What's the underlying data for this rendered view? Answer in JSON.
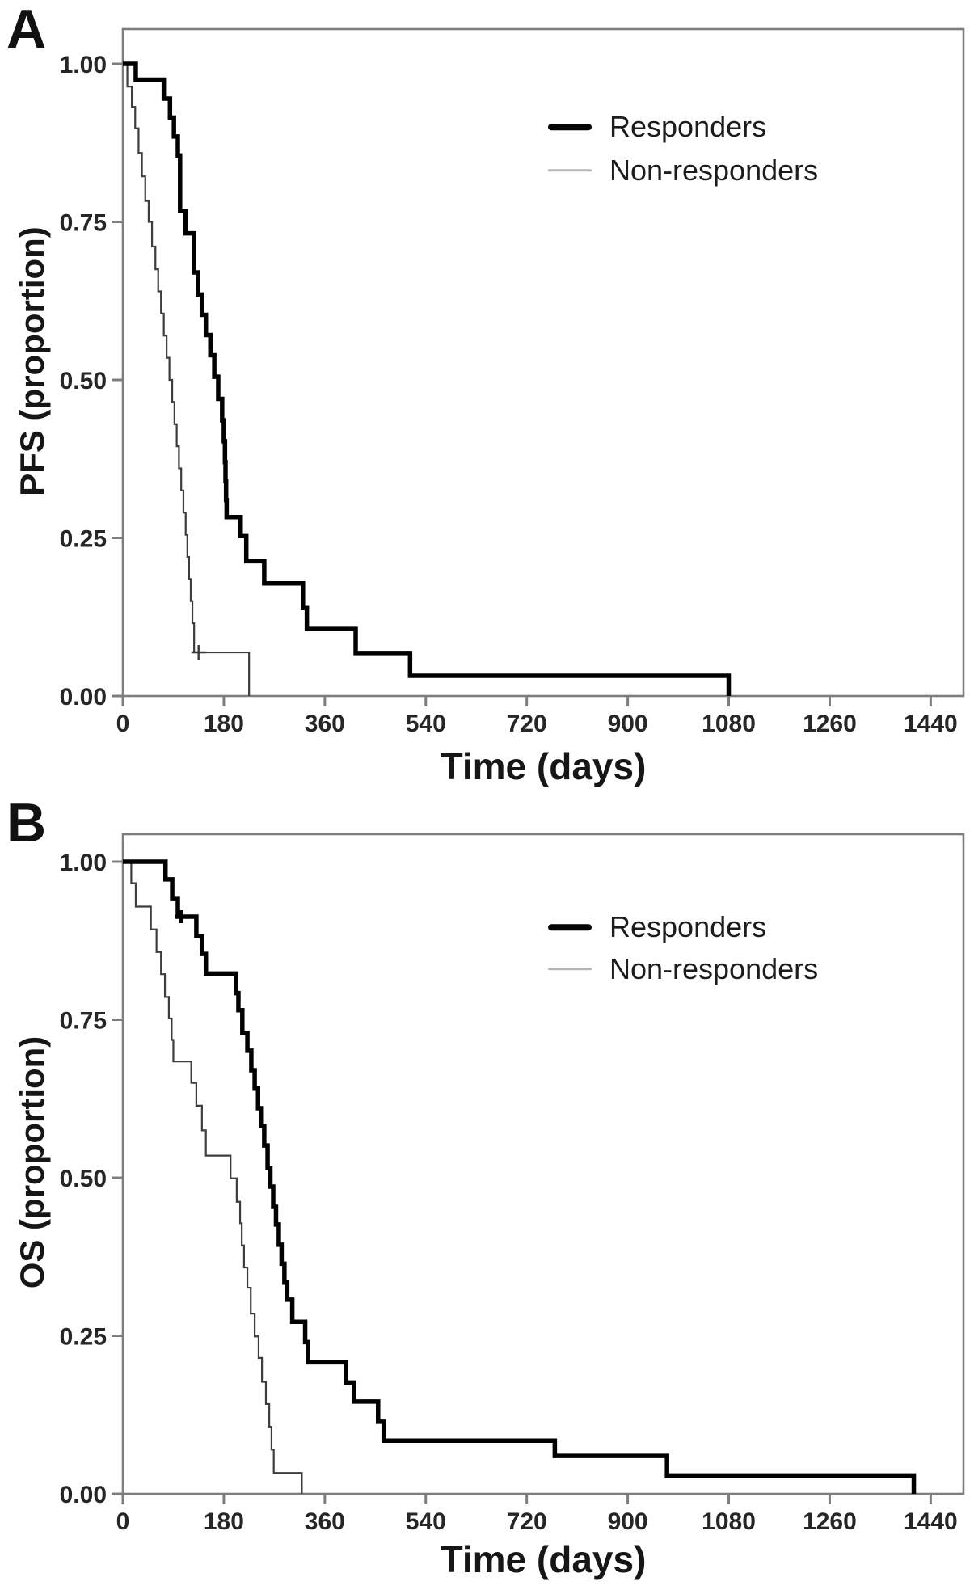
{
  "figure": {
    "kind": "kaplan-meier-survival-figure",
    "panel_letters": [
      "A",
      "B"
    ],
    "colors": {
      "responders_line": "#000000",
      "non_responders_line": "#3d3d3d",
      "non_responders_legend_swatch": "#b5b5b5",
      "axis_frame": "#7d7d7d",
      "tick_text": "#262626"
    }
  },
  "chart_data": [
    {
      "type": "line",
      "subtype": "kaplan-meier-step",
      "panel_label": "A",
      "title": "",
      "xlabel": "Time (days)",
      "ylabel": "PFS (proportion)",
      "xlim": [
        0,
        1499
      ],
      "ylim": [
        0,
        1.06
      ],
      "grid": false,
      "legend_position": "top-right",
      "x_ticks": [
        0,
        180,
        360,
        540,
        720,
        900,
        1080,
        1260,
        1440
      ],
      "x_tick_labels": [
        "0",
        "180",
        "360",
        "540",
        "720",
        "900",
        "1080",
        "1260",
        "1440"
      ],
      "y_ticks": [
        1.0,
        0.75,
        0.5,
        0.25,
        0.0
      ],
      "y_tick_labels": [
        "1.00",
        "0.75",
        "0.50",
        "0.25",
        "0.00"
      ],
      "series": [
        {
          "name": "Responders",
          "steps": [
            [
              0,
              1.0
            ],
            [
              23,
              0.975
            ],
            [
              73,
              0.945
            ],
            [
              84,
              0.915
            ],
            [
              91,
              0.885
            ],
            [
              98,
              0.855
            ],
            [
              102,
              0.767
            ],
            [
              112,
              0.732
            ],
            [
              127,
              0.67
            ],
            [
              134,
              0.635
            ],
            [
              141,
              0.603
            ],
            [
              148,
              0.571
            ],
            [
              156,
              0.539
            ],
            [
              163,
              0.505
            ],
            [
              170,
              0.47
            ],
            [
              177,
              0.436
            ],
            [
              180,
              0.403
            ],
            [
              182,
              0.37
            ],
            [
              183,
              0.34
            ],
            [
              184,
              0.31
            ],
            [
              185,
              0.283
            ],
            [
              210,
              0.254
            ],
            [
              220,
              0.213
            ],
            [
              252,
              0.178
            ],
            [
              321,
              0.139
            ],
            [
              328,
              0.106
            ],
            [
              415,
              0.068
            ],
            [
              512,
              0.032
            ],
            [
              1080,
              0.0
            ]
          ],
          "censor_marks": []
        },
        {
          "name": "Non-responders",
          "steps": [
            [
              0,
              1.0
            ],
            [
              8,
              0.964
            ],
            [
              16,
              0.932
            ],
            [
              22,
              0.898
            ],
            [
              28,
              0.859
            ],
            [
              34,
              0.822
            ],
            [
              40,
              0.783
            ],
            [
              46,
              0.75
            ],
            [
              52,
              0.711
            ],
            [
              58,
              0.675
            ],
            [
              63,
              0.64
            ],
            [
              68,
              0.605
            ],
            [
              73,
              0.57
            ],
            [
              78,
              0.535
            ],
            [
              83,
              0.5
            ],
            [
              88,
              0.465
            ],
            [
              92,
              0.43
            ],
            [
              96,
              0.395
            ],
            [
              100,
              0.36
            ],
            [
              104,
              0.325
            ],
            [
              108,
              0.29
            ],
            [
              112,
              0.255
            ],
            [
              115,
              0.22
            ],
            [
              118,
              0.185
            ],
            [
              121,
              0.15
            ],
            [
              124,
              0.115
            ],
            [
              127,
              0.069
            ],
            [
              225,
              0.0
            ]
          ],
          "censor_marks": [
            [
              135,
              0.069
            ]
          ]
        }
      ]
    },
    {
      "type": "line",
      "subtype": "kaplan-meier-step",
      "panel_label": "B",
      "title": "",
      "xlabel": "Time (days)",
      "ylabel": "OS (proportion)",
      "xlim": [
        0,
        1499
      ],
      "ylim": [
        0,
        1.05
      ],
      "grid": false,
      "legend_position": "top-right",
      "x_ticks": [
        0,
        180,
        360,
        540,
        720,
        900,
        1080,
        1260,
        1440
      ],
      "x_tick_labels": [
        "0",
        "180",
        "360",
        "540",
        "720",
        "900",
        "1080",
        "1260",
        "1440"
      ],
      "y_ticks": [
        1.0,
        0.75,
        0.5,
        0.25,
        0.0
      ],
      "y_tick_labels": [
        "1.00",
        "0.75",
        "0.50",
        "0.25",
        "0.00"
      ],
      "series": [
        {
          "name": "Responders",
          "steps": [
            [
              0,
              1.0
            ],
            [
              76,
              0.972
            ],
            [
              88,
              0.941
            ],
            [
              98,
              0.913
            ],
            [
              131,
              0.882
            ],
            [
              141,
              0.854
            ],
            [
              148,
              0.823
            ],
            [
              202,
              0.792
            ],
            [
              206,
              0.765
            ],
            [
              213,
              0.729
            ],
            [
              222,
              0.701
            ],
            [
              229,
              0.67
            ],
            [
              235,
              0.641
            ],
            [
              241,
              0.61
            ],
            [
              246,
              0.582
            ],
            [
              252,
              0.551
            ],
            [
              258,
              0.515
            ],
            [
              263,
              0.486
            ],
            [
              268,
              0.454
            ],
            [
              273,
              0.426
            ],
            [
              278,
              0.394
            ],
            [
              283,
              0.364
            ],
            [
              288,
              0.334
            ],
            [
              293,
              0.307
            ],
            [
              302,
              0.272
            ],
            [
              325,
              0.24
            ],
            [
              330,
              0.208
            ],
            [
              398,
              0.176
            ],
            [
              412,
              0.146
            ],
            [
              455,
              0.114
            ],
            [
              465,
              0.084
            ],
            [
              770,
              0.06
            ],
            [
              970,
              0.029
            ],
            [
              1410,
              0.0
            ]
          ],
          "censor_marks": [
            [
              104,
              0.913
            ]
          ]
        },
        {
          "name": "Non-responders",
          "steps": [
            [
              0,
              1.0
            ],
            [
              15,
              0.966
            ],
            [
              23,
              0.929
            ],
            [
              50,
              0.893
            ],
            [
              60,
              0.857
            ],
            [
              68,
              0.822
            ],
            [
              75,
              0.786
            ],
            [
              82,
              0.752
            ],
            [
              87,
              0.718
            ],
            [
              90,
              0.684
            ],
            [
              122,
              0.65
            ],
            [
              131,
              0.614
            ],
            [
              141,
              0.575
            ],
            [
              148,
              0.535
            ],
            [
              192,
              0.499
            ],
            [
              203,
              0.462
            ],
            [
              209,
              0.428
            ],
            [
              212,
              0.393
            ],
            [
              216,
              0.358
            ],
            [
              222,
              0.326
            ],
            [
              228,
              0.285
            ],
            [
              235,
              0.249
            ],
            [
              242,
              0.215
            ],
            [
              248,
              0.177
            ],
            [
              255,
              0.142
            ],
            [
              261,
              0.106
            ],
            [
              265,
              0.07
            ],
            [
              269,
              0.033
            ],
            [
              319,
              0.0
            ]
          ],
          "censor_marks": []
        }
      ]
    }
  ]
}
